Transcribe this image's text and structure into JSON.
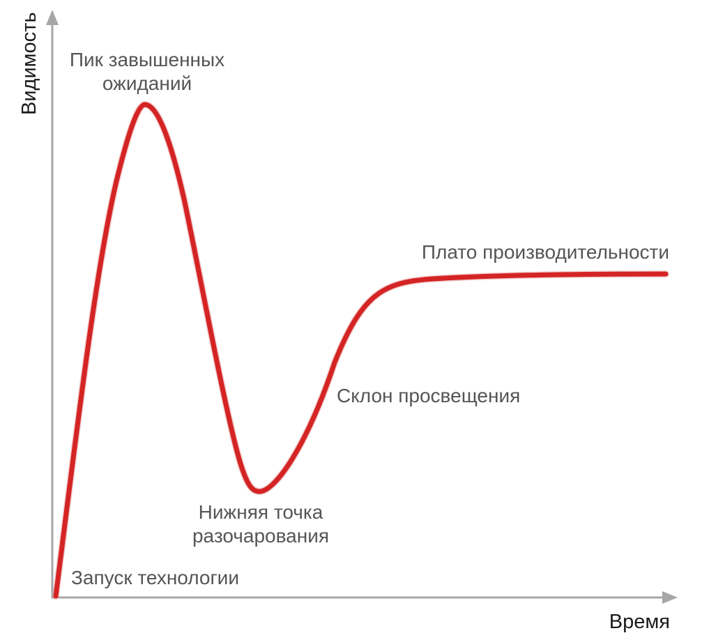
{
  "axes": {
    "y_label": "Видимость",
    "x_label": "Время"
  },
  "phases": {
    "trigger": "Запуск технологии",
    "peak_line1": "Пик завышенных",
    "peak_line2": "ожиданий",
    "trough_line1": "Нижняя точка",
    "trough_line2": "разочарования",
    "slope": "Склон просвещения",
    "plateau": "Плато производительности"
  },
  "colors": {
    "curve": "#d42424",
    "axis": "#a6a6a6",
    "label_text": "#555555"
  }
}
